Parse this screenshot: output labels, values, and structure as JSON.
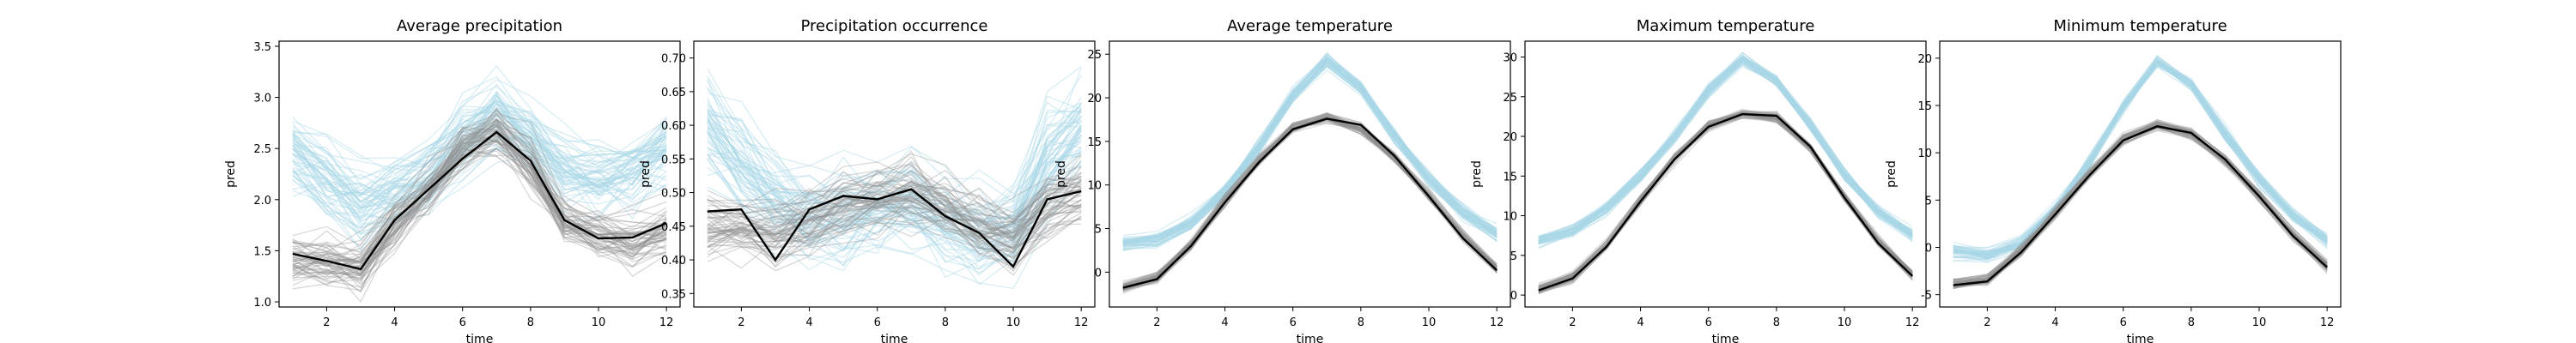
{
  "chart_data": [
    {
      "type": "line",
      "title": "Average precipitation",
      "xlabel": "time",
      "ylabel": "pred",
      "xlim": [
        0.6,
        12.4
      ],
      "ylim": [
        0.95,
        3.55
      ],
      "xticks": [
        2,
        4,
        6,
        8,
        10,
        12
      ],
      "yticks": [
        1.0,
        1.5,
        2.0,
        2.5,
        3.0,
        3.5
      ],
      "ytick_decimals": 1,
      "x": [
        1,
        2,
        3,
        4,
        5,
        6,
        7,
        8,
        9,
        10,
        11,
        12
      ],
      "series": [
        {
          "role": "light-blue ensemble mean",
          "values": [
            2.5,
            2.2,
            1.95,
            2.05,
            2.25,
            2.6,
            2.85,
            2.6,
            2.3,
            2.2,
            2.3,
            2.5
          ],
          "spread": 0.22,
          "count": 60
        },
        {
          "role": "gray ensemble mean",
          "values": [
            1.45,
            1.4,
            1.35,
            1.75,
            2.1,
            2.5,
            2.7,
            2.35,
            1.8,
            1.65,
            1.6,
            1.7
          ],
          "spread": 0.17,
          "count": 60
        },
        {
          "role": "black observed",
          "values": [
            1.47,
            1.4,
            1.32,
            1.8,
            2.1,
            2.4,
            2.66,
            2.38,
            1.8,
            1.62,
            1.63,
            1.77
          ]
        }
      ]
    },
    {
      "type": "line",
      "title": "Precipitation occurrence",
      "xlabel": "time",
      "ylabel": "pred",
      "xlim": [
        0.6,
        12.4
      ],
      "ylim": [
        0.33,
        0.725
      ],
      "xticks": [
        2,
        4,
        6,
        8,
        10,
        12
      ],
      "yticks": [
        0.35,
        0.4,
        0.45,
        0.5,
        0.55,
        0.6,
        0.65,
        0.7
      ],
      "ytick_decimals": 2,
      "x": [
        1,
        2,
        3,
        4,
        5,
        6,
        7,
        8,
        9,
        10,
        11,
        12
      ],
      "series": [
        {
          "role": "light-blue ensemble mean",
          "values": [
            0.6,
            0.55,
            0.5,
            0.47,
            0.47,
            0.48,
            0.48,
            0.46,
            0.44,
            0.45,
            0.55,
            0.6
          ],
          "spread": 0.04,
          "count": 60
        },
        {
          "role": "gray ensemble mean",
          "values": [
            0.45,
            0.45,
            0.44,
            0.46,
            0.48,
            0.49,
            0.5,
            0.48,
            0.45,
            0.43,
            0.48,
            0.5
          ],
          "spread": 0.03,
          "count": 60
        },
        {
          "role": "black observed",
          "values": [
            0.472,
            0.475,
            0.4,
            0.475,
            0.495,
            0.49,
            0.505,
            0.465,
            0.44,
            0.39,
            0.49,
            0.502
          ]
        }
      ]
    },
    {
      "type": "line",
      "title": "Average temperature",
      "xlabel": "time",
      "ylabel": "pred",
      "xlim": [
        0.6,
        12.4
      ],
      "ylim": [
        -4,
        26.5
      ],
      "xticks": [
        2,
        4,
        6,
        8,
        10,
        12
      ],
      "yticks": [
        0,
        5,
        10,
        15,
        20,
        25
      ],
      "ytick_decimals": 0,
      "x": [
        1,
        2,
        3,
        4,
        5,
        6,
        7,
        8,
        9,
        10,
        11,
        12
      ],
      "series": [
        {
          "role": "light-blue ensemble mean",
          "values": [
            3.3,
            3.7,
            5.6,
            9.3,
            14.4,
            20.2,
            24.2,
            21.1,
            15.6,
            10.7,
            6.9,
            4.3
          ],
          "spread": 0.5,
          "count": 50
        },
        {
          "role": "gray ensemble mean",
          "values": [
            -1.7,
            -0.6,
            3.2,
            8.2,
            12.8,
            16.6,
            17.8,
            16.5,
            13.2,
            8.8,
            4.2,
            0.4
          ],
          "spread": 0.4,
          "count": 50
        },
        {
          "role": "black observed",
          "values": [
            -1.8,
            -0.8,
            3.0,
            8.0,
            12.6,
            16.4,
            17.6,
            16.9,
            13.3,
            8.7,
            3.9,
            0.2
          ]
        }
      ]
    },
    {
      "type": "line",
      "title": "Maximum temperature",
      "xlabel": "time",
      "ylabel": "pred",
      "xlim": [
        0.6,
        12.4
      ],
      "ylim": [
        -1.5,
        32
      ],
      "xticks": [
        2,
        4,
        6,
        8,
        10,
        12
      ],
      "yticks": [
        0,
        5,
        10,
        15,
        20,
        25,
        30
      ],
      "ytick_decimals": 0,
      "x": [
        1,
        2,
        3,
        4,
        5,
        6,
        7,
        8,
        9,
        10,
        11,
        12
      ],
      "series": [
        {
          "role": "light-blue ensemble mean",
          "values": [
            6.8,
            8.0,
            10.9,
            15.1,
            20.0,
            25.8,
            29.8,
            27.0,
            21.4,
            15.1,
            10.4,
            7.6
          ],
          "spread": 0.5,
          "count": 50
        },
        {
          "role": "gray ensemble mean",
          "values": [
            0.8,
            2.3,
            6.3,
            12.0,
            17.3,
            21.4,
            22.9,
            22.4,
            18.6,
            12.4,
            6.8,
            2.6
          ],
          "spread": 0.4,
          "count": 50
        },
        {
          "role": "black observed",
          "values": [
            0.6,
            2.1,
            6.1,
            11.8,
            17.1,
            21.2,
            22.8,
            22.6,
            18.7,
            12.3,
            6.5,
            2.4
          ]
        }
      ]
    },
    {
      "type": "line",
      "title": "Minimum temperature",
      "xlabel": "time",
      "ylabel": "pred",
      "xlim": [
        0.6,
        12.4
      ],
      "ylim": [
        -6.3,
        21.8
      ],
      "xticks": [
        2,
        4,
        6,
        8,
        10,
        12
      ],
      "yticks": [
        -5,
        0,
        5,
        10,
        15,
        20
      ],
      "ytick_decimals": 0,
      "x": [
        1,
        2,
        3,
        4,
        5,
        6,
        7,
        8,
        9,
        10,
        11,
        12
      ],
      "series": [
        {
          "role": "light-blue ensemble mean",
          "values": [
            -0.4,
            -0.8,
            0.4,
            4.0,
            9.0,
            14.8,
            19.7,
            17.3,
            12.0,
            7.2,
            3.4,
            0.8
          ],
          "spread": 0.5,
          "count": 50
        },
        {
          "role": "gray ensemble mean",
          "values": [
            -3.8,
            -3.4,
            -0.3,
            3.7,
            7.8,
            11.5,
            13.0,
            12.0,
            9.2,
            5.5,
            1.4,
            -1.9
          ],
          "spread": 0.4,
          "count": 50
        },
        {
          "role": "black observed",
          "values": [
            -4.0,
            -3.6,
            -0.5,
            3.5,
            7.6,
            11.3,
            12.8,
            12.1,
            9.3,
            5.4,
            1.2,
            -2.1
          ]
        }
      ]
    }
  ],
  "colors": {
    "ensemble_a": "#a9d8e6",
    "ensemble_b": "#8f8f8f",
    "observed": "#000000",
    "axes": "#000000"
  }
}
